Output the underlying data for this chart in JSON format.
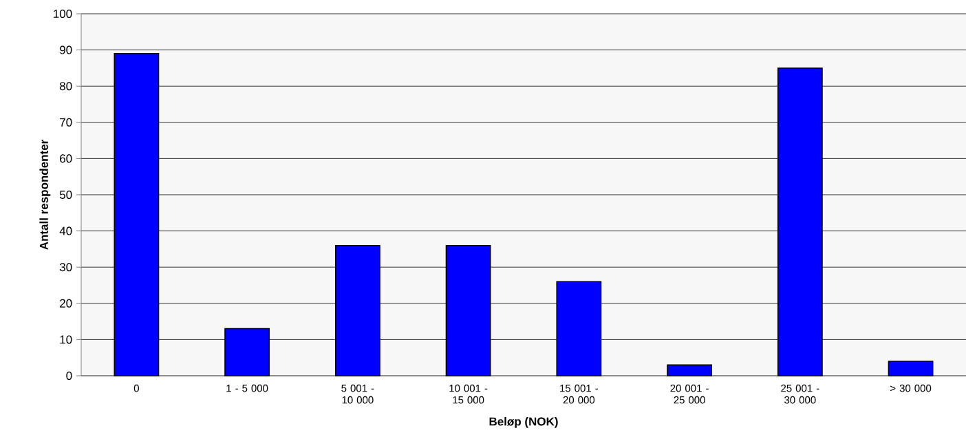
{
  "chart_data": {
    "type": "bar",
    "xlabel": "Beløp (NOK)",
    "ylabel": "Antall respondenter",
    "categories": [
      "0",
      "1 - 5 000",
      "5 001 - 10 000",
      "10 001 - 15 000",
      "15 001 - 20 000",
      "20 001 - 25 000",
      "25 001 - 30 000",
      "> 30 000"
    ],
    "values": [
      89,
      13,
      36,
      36,
      26,
      3,
      85,
      4
    ],
    "color": "#0000ff",
    "ylim": [
      0,
      100
    ],
    "yticks": [
      0,
      10,
      20,
      30,
      40,
      50,
      60,
      70,
      80,
      90,
      100
    ],
    "grid": "y"
  }
}
